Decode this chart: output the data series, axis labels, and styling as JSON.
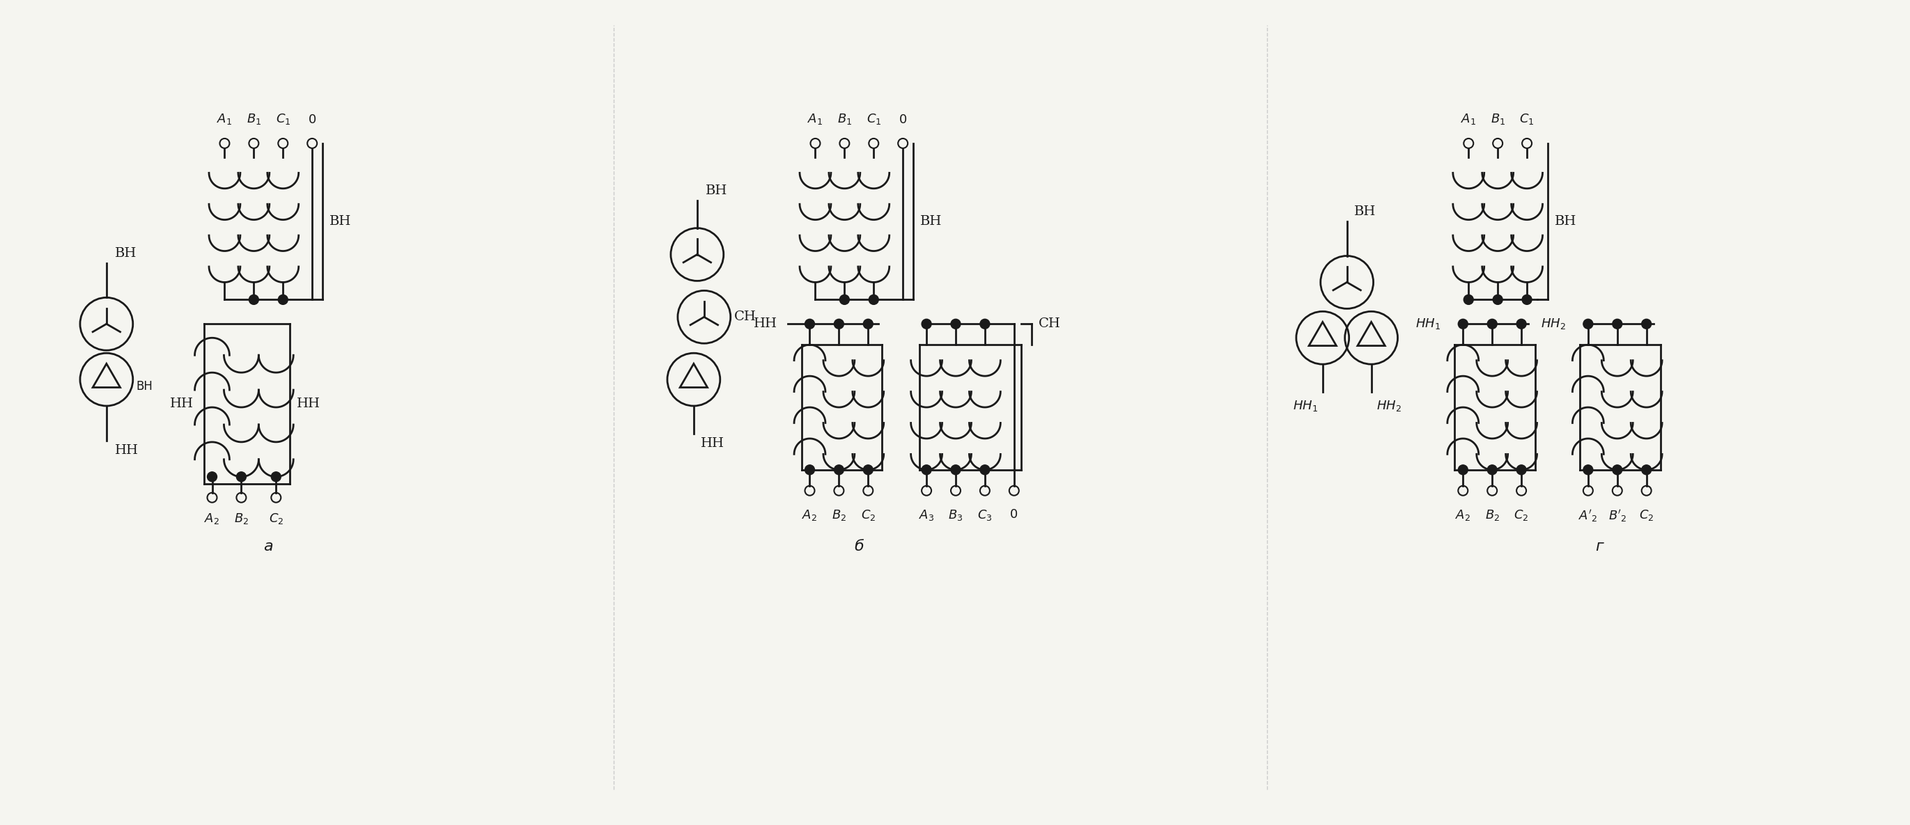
{
  "bg_color": "#f5f5f0",
  "line_color": "#1a1a1a",
  "fig_width": 27.42,
  "fig_height": 11.85,
  "labels": {
    "a_title": "а",
    "b_title": "б",
    "g_title": "г"
  }
}
